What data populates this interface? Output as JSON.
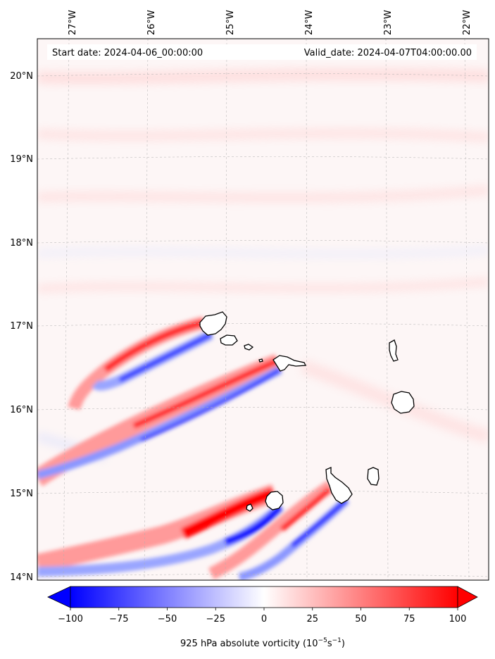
{
  "map": {
    "start_date_label": "Start date: 2024-04-06_00:00:00",
    "valid_date_label": "Valid_date: 2024-04-07T04:00:00.00",
    "lon_ticks": [
      "27°W",
      "26°W",
      "25°W",
      "24°W",
      "23°W",
      "22°W"
    ],
    "lat_ticks": [
      "20°N",
      "19°N",
      "18°N",
      "17°N",
      "16°N",
      "15°N",
      "14°N"
    ],
    "extent": {
      "lon_min": -27.4,
      "lon_max": -21.75,
      "lat_min": 13.95,
      "lat_max": 20.45
    },
    "gridlines": true,
    "islands": [
      "Santo Antão",
      "São Vicente",
      "Santa Luzia",
      "São Nicolau",
      "Sal",
      "Boa Vista",
      "Santiago",
      "Maio",
      "Fogo",
      "Brava"
    ]
  },
  "colorbar": {
    "ticks": [
      "−100",
      "−75",
      "−50",
      "−25",
      "0",
      "25",
      "50",
      "75",
      "100"
    ],
    "label_main": "925 hPa absolute vorticity (10",
    "label_exp1": "−5",
    "label_mid": "s",
    "label_exp2": "−1",
    "label_end": ")",
    "vmin": -100,
    "vmax": 100,
    "colormap": "bwr",
    "neg_color": "#0000ff",
    "pos_color": "#ff0000",
    "zero_color": "#ffffff"
  }
}
